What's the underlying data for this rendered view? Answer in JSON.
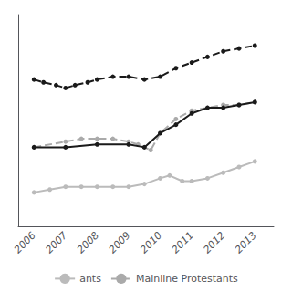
{
  "chart_data": {
    "type": "line",
    "series": [
      {
        "name": "ants",
        "color": "#bbbbbb",
        "line_style": "solid",
        "marker": "circle",
        "x": [
          2006,
          2006.5,
          2007,
          2007.5,
          2008,
          2008.5,
          2009,
          2009.5,
          2010,
          2010.3,
          2010.7,
          2011,
          2011.5,
          2012,
          2012.5,
          2013
        ],
        "values": [
          22,
          23,
          24,
          24,
          24,
          24,
          24,
          25,
          27,
          28,
          26,
          26,
          27,
          29,
          31,
          33
        ]
      },
      {
        "name": "Mainline Protestants",
        "color": "#aaaaaa",
        "line_style": "dashed",
        "marker": "circle",
        "x": [
          2006,
          2007,
          2007.5,
          2008,
          2008.5,
          2009,
          2009.3,
          2009.7,
          2010,
          2010.5,
          2011,
          2011.5,
          2012,
          2012.5,
          2013
        ],
        "values": [
          38,
          40,
          41,
          41,
          41,
          40,
          39,
          37,
          43,
          48,
          51,
          52,
          53,
          53,
          54
        ]
      },
      {
        "color": "#1a1a1a",
        "line_style": "solid",
        "marker": "circle",
        "x": [
          2006,
          2007,
          2008,
          2009,
          2009.5,
          2010,
          2010.5,
          2011,
          2011.5,
          2012,
          2012.5,
          2013
        ],
        "values": [
          38,
          38,
          39,
          39,
          38,
          43,
          46,
          50,
          52,
          52,
          53,
          54
        ]
      },
      {
        "color": "#1a1a1a",
        "line_style": "dashed",
        "marker": "circle",
        "x": [
          2006,
          2006.3,
          2006.7,
          2007,
          2007.3,
          2007.7,
          2008,
          2008.5,
          2009,
          2009.5,
          2010,
          2010.5,
          2011,
          2011.5,
          2012,
          2012.5,
          2013
        ],
        "values": [
          62,
          61,
          60,
          59,
          60,
          61,
          62,
          63,
          63,
          62,
          63,
          66,
          68,
          70,
          72,
          73,
          74
        ]
      }
    ],
    "xlim": [
      2005.5,
      2013.6
    ],
    "xticks": [
      2006,
      2007,
      2008,
      2009,
      2010,
      2011,
      2012,
      2013
    ],
    "ylim": [
      10,
      85
    ],
    "grid": false,
    "tick_labels": "x",
    "legend": "bottom"
  }
}
